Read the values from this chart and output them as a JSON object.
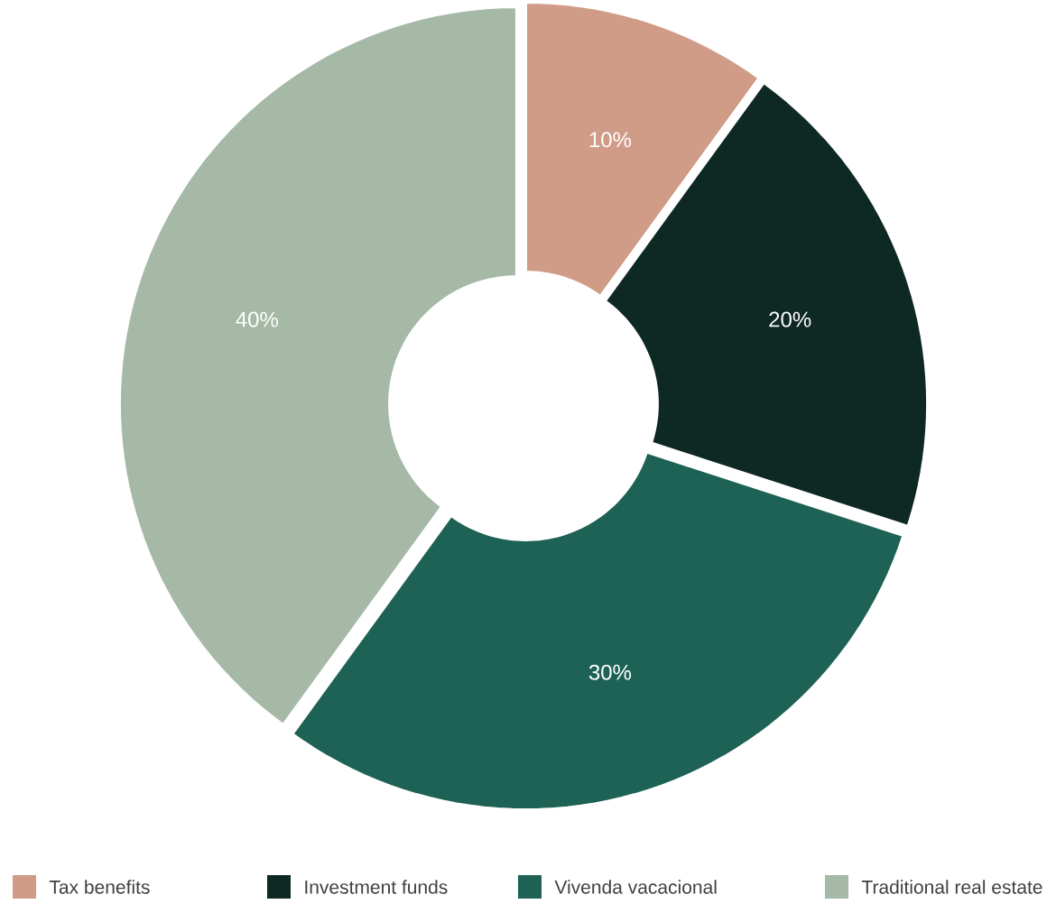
{
  "chart_data": {
    "type": "donut",
    "categories": [
      "Tax benefits",
      "Investment funds",
      "Vivenda vacacional",
      "Traditional real estate"
    ],
    "values": [
      10,
      20,
      30,
      40
    ],
    "colors": [
      "#d09c88",
      "#0e2924",
      "#1e6255",
      "#a5b9a6"
    ],
    "value_labels": [
      "10%",
      "20%",
      "30%",
      "40%"
    ],
    "legend": "bottom"
  }
}
